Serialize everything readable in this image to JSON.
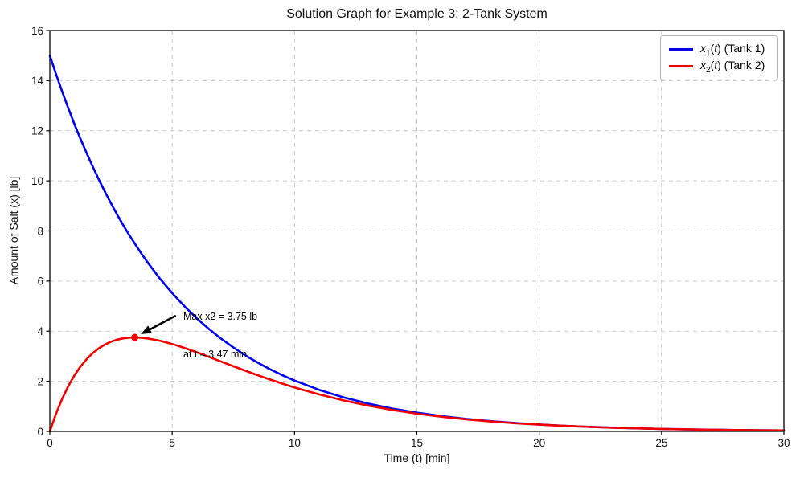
{
  "chart_data": {
    "type": "line",
    "title": "Solution Graph for Example 3: 2-Tank System",
    "xlabel": "Time (t) [min]",
    "ylabel": "Amount of Salt (x) [lb]",
    "xlim": [
      0,
      30
    ],
    "ylim": [
      0,
      16
    ],
    "xticks": [
      0,
      5,
      10,
      15,
      20,
      25,
      30
    ],
    "yticks": [
      0,
      2,
      4,
      6,
      8,
      10,
      12,
      14,
      16
    ],
    "grid": {
      "on": true,
      "style": "dashed",
      "color": "#c9c9c9"
    },
    "x": [
      0,
      0.25,
      0.5,
      0.75,
      1,
      1.25,
      1.5,
      1.75,
      2,
      2.25,
      2.5,
      2.75,
      3,
      3.25,
      3.47,
      3.75,
      4,
      4.5,
      5,
      5.5,
      6,
      6.5,
      7,
      7.5,
      8,
      8.5,
      9,
      9.5,
      10,
      11,
      12,
      13,
      14,
      15,
      16,
      17,
      18,
      19,
      20,
      21,
      22,
      23,
      24,
      25,
      26,
      27,
      28,
      29,
      30
    ],
    "series": [
      {
        "name": "x1(t) (Tank 1)",
        "color": "#0000ee",
        "values": [
          15,
          14.268,
          13.573,
          12.911,
          12.281,
          11.682,
          11.112,
          10.57,
          10.055,
          9.564,
          9.098,
          8.654,
          8.232,
          7.831,
          7.5,
          7.086,
          6.74,
          6.099,
          5.518,
          4.993,
          4.518,
          4.088,
          3.699,
          3.347,
          3.028,
          2.74,
          2.479,
          2.244,
          2.03,
          1.662,
          1.361,
          1.114,
          0.912,
          0.747,
          0.611,
          0.501,
          0.41,
          0.336,
          0.275,
          0.225,
          0.184,
          0.151,
          0.123,
          0.101,
          0.083,
          0.068,
          0.055,
          0.045,
          0.037
        ]
      },
      {
        "name": "x2(t) (Tank 2)",
        "color": "#ee0000",
        "values": [
          0,
          0.696,
          1.292,
          1.798,
          2.226,
          2.584,
          2.88,
          3.122,
          3.315,
          3.466,
          3.58,
          3.661,
          3.714,
          3.743,
          3.75,
          3.739,
          3.711,
          3.619,
          3.488,
          3.331,
          3.157,
          2.974,
          2.787,
          2.6,
          2.417,
          2.24,
          2.07,
          1.908,
          1.755,
          1.478,
          1.237,
          1.031,
          0.857,
          0.71,
          0.587,
          0.484,
          0.399,
          0.328,
          0.27,
          0.222,
          0.182,
          0.149,
          0.122,
          0.1,
          0.082,
          0.067,
          0.055,
          0.045,
          0.037
        ]
      }
    ],
    "legend": {
      "position": "upper right",
      "items": [
        {
          "var": "x",
          "sub": "1",
          "open": "(",
          "tvar": "t",
          "close": ")",
          "suffix": " (Tank 1)"
        },
        {
          "var": "x",
          "sub": "2",
          "open": "(",
          "tvar": "t",
          "close": ")",
          "suffix": " (Tank 2)"
        }
      ]
    },
    "annotation": {
      "line1": "Max x2 = 3.75 lb",
      "line2": "at t ≈ 3.47 min",
      "point": [
        3.47,
        3.75
      ],
      "arrow_tail": [
        5.15,
        4.62
      ],
      "marker_color": "#ee0000",
      "arrow_color": "#000000"
    }
  }
}
